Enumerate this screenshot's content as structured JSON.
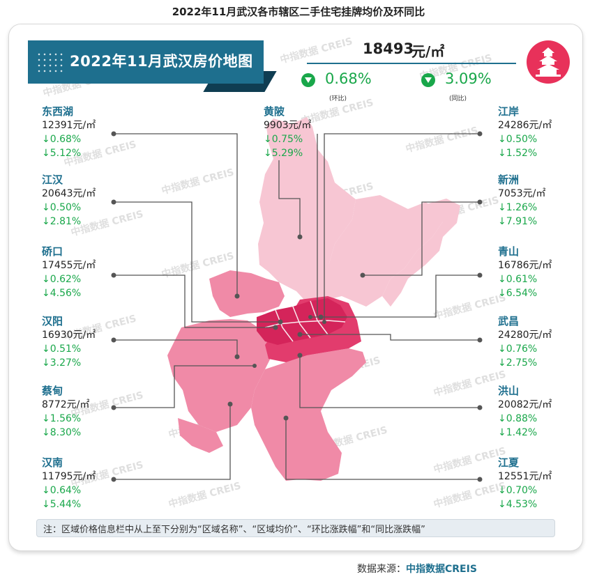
{
  "title": "2022年11月武汉各市辖区二手住宅挂牌均价及环同比",
  "banner": "2022年11月武汉房价地图",
  "overall": {
    "price": "18493",
    "unit": "元/㎡",
    "mom": "0.68%",
    "mom_label": "(环比)",
    "yoy": "3.09%",
    "yoy_label": "(同比)",
    "direction": "down"
  },
  "districts_left": [
    {
      "name": "东西湖",
      "price": "12391元/㎡",
      "mom": "↓0.68%",
      "yoy": "↓5.12%"
    },
    {
      "name": "江汉",
      "price": "20643元/㎡",
      "mom": "↓0.50%",
      "yoy": "↓2.81%"
    },
    {
      "name": "硚口",
      "price": "17455元/㎡",
      "mom": "↓0.62%",
      "yoy": "↓4.56%"
    },
    {
      "name": "汉阳",
      "price": "16930元/㎡",
      "mom": "↓0.51%",
      "yoy": "↓3.27%"
    },
    {
      "name": "蔡甸",
      "price": "8772元/㎡",
      "mom": "↓1.56%",
      "yoy": "↓8.30%"
    },
    {
      "name": "汉南",
      "price": "11795元/㎡",
      "mom": "↓0.64%",
      "yoy": "↓5.44%"
    }
  ],
  "districts_center": [
    {
      "name": "黄陂",
      "price": "9903元/㎡",
      "mom": "↓0.75%",
      "yoy": "↓5.29%"
    }
  ],
  "districts_right": [
    {
      "name": "江岸",
      "price": "24286元/㎡",
      "mom": "↓0.50%",
      "yoy": "↓1.52%"
    },
    {
      "name": "新洲",
      "price": "7053元/㎡",
      "mom": "↓1.26%",
      "yoy": "↓7.91%"
    },
    {
      "name": "青山",
      "price": "16786元/㎡",
      "mom": "↓0.61%",
      "yoy": "↓6.54%"
    },
    {
      "name": "武昌",
      "price": "24280元/㎡",
      "mom": "↓0.76%",
      "yoy": "↓2.75%"
    },
    {
      "name": "洪山",
      "price": "20082元/㎡",
      "mom": "↓0.88%",
      "yoy": "↓1.42%"
    },
    {
      "name": "江夏",
      "price": "12551元/㎡",
      "mom": "↓0.70%",
      "yoy": "↓4.53%"
    }
  ],
  "note": "注：区域价格信息栏中从上至下分别为“区域名称”、“区域均价”、“环比涨跌幅”和“同比涨跌幅”",
  "source_label": "数据来源：",
  "source_brand": "中指数据CREIS",
  "watermark": "中指数据 CREIS",
  "colors": {
    "accent": "#1e6f8e",
    "down": "#19a74a",
    "map_dark": "#e23c6d",
    "map_mid": "#f08aa7",
    "map_light": "#f7c6d3",
    "logo": "#e8315a"
  }
}
